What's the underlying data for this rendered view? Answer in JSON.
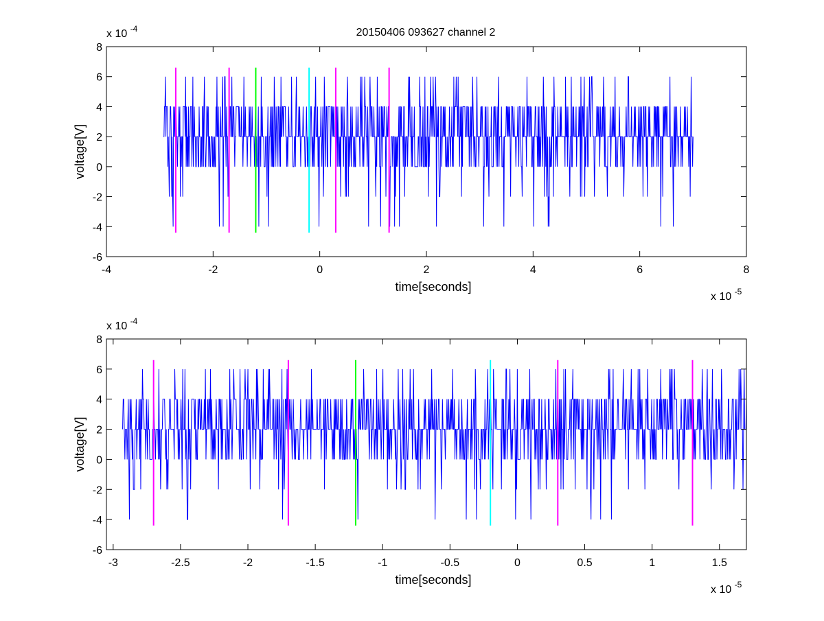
{
  "figure": {
    "title": "20150406 093627 channel 2"
  },
  "chart_data": [
    {
      "type": "line",
      "title": "20150406 093627 channel 2",
      "xlabel": "time[seconds]",
      "ylabel": "voltage[V]",
      "x_exponent_label": "x 10",
      "x_exponent_power": "-5",
      "y_exponent_label": "x 10",
      "y_exponent_power": "-4",
      "x_scale": 1e-05,
      "y_scale": 0.0001,
      "xlim": [
        -4,
        8
      ],
      "ylim": [
        -6,
        8
      ],
      "x_ticks": [
        -4,
        -2,
        0,
        2,
        4,
        6,
        8
      ],
      "x_tick_labels": [
        "-4",
        "-2",
        "0",
        "2",
        "4",
        "6",
        "8"
      ],
      "y_ticks": [
        -6,
        -4,
        -2,
        0,
        2,
        4,
        6,
        8
      ],
      "y_tick_labels": [
        "-6",
        "-4",
        "-2",
        "0",
        "2",
        "4",
        "6",
        "8"
      ],
      "signal": {
        "color": "#0000ff",
        "x_range": [
          -2.93,
          7.0
        ],
        "baseline": 2,
        "levels": [
          -4,
          -2,
          0,
          2,
          4,
          6
        ],
        "typical_range": [
          0,
          4
        ]
      },
      "markers": [
        {
          "x": -2.7,
          "color": "#ff00ff"
        },
        {
          "x": -1.7,
          "color": "#ff00ff"
        },
        {
          "x": -1.2,
          "color": "#00ff00"
        },
        {
          "x": -0.2,
          "color": "#00ffff"
        },
        {
          "x": 0.3,
          "color": "#ff00ff"
        },
        {
          "x": 1.3,
          "color": "#ff00ff"
        }
      ],
      "marker_y_range": [
        -4.4,
        6.6
      ]
    },
    {
      "type": "line",
      "xlabel": "time[seconds]",
      "ylabel": "voltage[V]",
      "x_exponent_label": "x 10",
      "x_exponent_power": "-5",
      "y_exponent_label": "x 10",
      "y_exponent_power": "-4",
      "x_scale": 1e-05,
      "y_scale": 0.0001,
      "xlim": [
        -3.05,
        1.7
      ],
      "ylim": [
        -6,
        8
      ],
      "x_ticks": [
        -3,
        -2.5,
        -2,
        -1.5,
        -1,
        -0.5,
        0,
        0.5,
        1,
        1.5
      ],
      "x_tick_labels": [
        "-3",
        "-2.5",
        "-2",
        "-1.5",
        "-1",
        "-0.5",
        "0",
        "0.5",
        "1",
        "1.5"
      ],
      "y_ticks": [
        -6,
        -4,
        -2,
        0,
        2,
        4,
        6,
        8
      ],
      "y_tick_labels": [
        "-6",
        "-4",
        "-2",
        "0",
        "2",
        "4",
        "6",
        "8"
      ],
      "signal": {
        "color": "#0000ff",
        "x_range": [
          -2.93,
          1.7
        ],
        "baseline": 2,
        "levels": [
          -4,
          -2,
          0,
          2,
          4,
          6
        ],
        "typical_range": [
          0,
          4
        ]
      },
      "markers": [
        {
          "x": -2.7,
          "color": "#ff00ff"
        },
        {
          "x": -1.7,
          "color": "#ff00ff"
        },
        {
          "x": -1.2,
          "color": "#00ff00"
        },
        {
          "x": -0.2,
          "color": "#00ffff"
        },
        {
          "x": 0.3,
          "color": "#ff00ff"
        },
        {
          "x": 1.3,
          "color": "#ff00ff"
        }
      ],
      "marker_y_range": [
        -4.4,
        6.6
      ]
    }
  ]
}
